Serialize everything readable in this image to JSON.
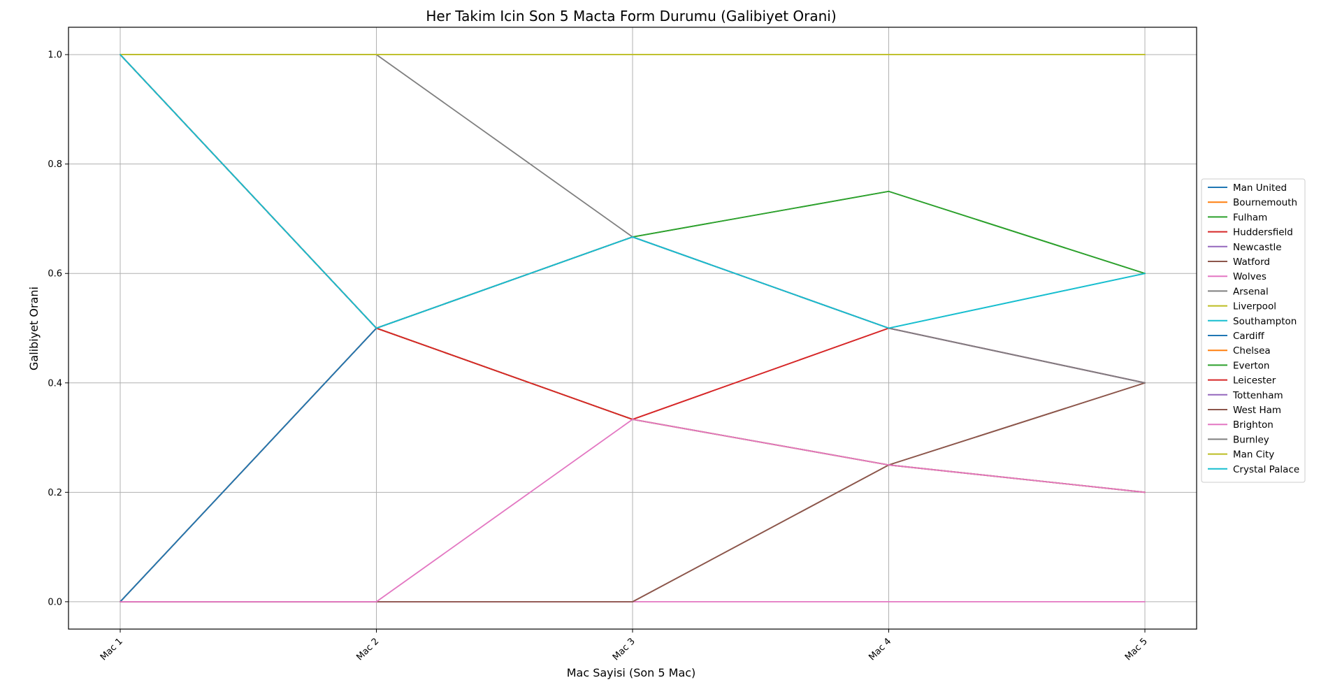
{
  "chart_data": {
    "type": "line",
    "title": "Her Takim Icin Son 5 Macta Form Durumu (Galibiyet Orani)",
    "xlabel": "Mac Sayisi (Son 5 Mac)",
    "ylabel": "Galibiyet Orani",
    "categories": [
      "Mac 1",
      "Mac 2",
      "Mac 3",
      "Mac 4",
      "Mac 5"
    ],
    "yticks": [
      "0.0",
      "0.2",
      "0.4",
      "0.6",
      "0.8",
      "1.0"
    ],
    "ylim": [
      -0.05,
      1.05
    ],
    "grid": true,
    "legend_position": "right",
    "series": [
      {
        "name": "Man United",
        "color": "#1f77b4",
        "values": [
          0,
          0.5,
          0.3333,
          0.25,
          0.2
        ]
      },
      {
        "name": "Bournemouth",
        "color": "#ff7f0e",
        "values": [
          1,
          0.5,
          0.3333,
          0.25,
          0.2
        ]
      },
      {
        "name": "Fulham",
        "color": "#2ca02c",
        "values": [
          0,
          0.5,
          0.6667,
          0.75,
          0.6
        ]
      },
      {
        "name": "Huddersfield",
        "color": "#d62728",
        "values": [
          0,
          0.5,
          0.3333,
          0.5,
          0.4
        ]
      },
      {
        "name": "Newcastle",
        "color": "#9467bd",
        "values": [
          1,
          0.5,
          0.6667,
          0.5,
          0.4
        ]
      },
      {
        "name": "Watford",
        "color": "#8c564b",
        "values": [
          0,
          0,
          0,
          0.25,
          0.4
        ]
      },
      {
        "name": "Wolves",
        "color": "#e377c2",
        "values": [
          0,
          0,
          0,
          0,
          0
        ]
      },
      {
        "name": "Arsenal",
        "color": "#7f7f7f",
        "values": [
          1,
          1,
          0.6667,
          0.5,
          0.4
        ]
      },
      {
        "name": "Liverpool",
        "color": "#bcbd22",
        "values": [
          1,
          1,
          1,
          1,
          1
        ]
      },
      {
        "name": "Southampton",
        "color": "#17becf",
        "values": [
          1,
          0.5,
          0.6667,
          0.5,
          0.6
        ]
      },
      {
        "name": "Cardiff",
        "color": "#1f77b4",
        "values": [
          0,
          0.5,
          0.3333,
          0.25,
          0.2
        ]
      },
      {
        "name": "Chelsea",
        "color": "#ff7f0e",
        "values": [
          1,
          0.5,
          0.3333,
          0.25,
          0.2
        ]
      },
      {
        "name": "Everton",
        "color": "#2ca02c",
        "values": [
          1,
          0.5,
          0.6667,
          0.75,
          0.6
        ]
      },
      {
        "name": "Leicester",
        "color": "#d62728",
        "values": [
          1,
          0.5,
          0.3333,
          0.5,
          0.4
        ]
      },
      {
        "name": "Tottenham",
        "color": "#9467bd",
        "values": [
          1,
          0.5,
          0.6667,
          0.5,
          0.4
        ]
      },
      {
        "name": "West Ham",
        "color": "#8c564b",
        "values": [
          0,
          0,
          0,
          0.25,
          0.4
        ]
      },
      {
        "name": "Brighton",
        "color": "#e377c2",
        "values": [
          0,
          0,
          0.3333,
          0.25,
          0.2
        ]
      },
      {
        "name": "Burnley",
        "color": "#7f7f7f",
        "values": [
          1,
          0.5,
          0.6667,
          0.5,
          0.4
        ]
      },
      {
        "name": "Man City",
        "color": "#bcbd22",
        "values": [
          1,
          1,
          1,
          1,
          1
        ]
      },
      {
        "name": "Crystal Palace",
        "color": "#17becf",
        "values": [
          1,
          0.5,
          0.6667,
          0.5,
          0.6
        ]
      }
    ]
  }
}
